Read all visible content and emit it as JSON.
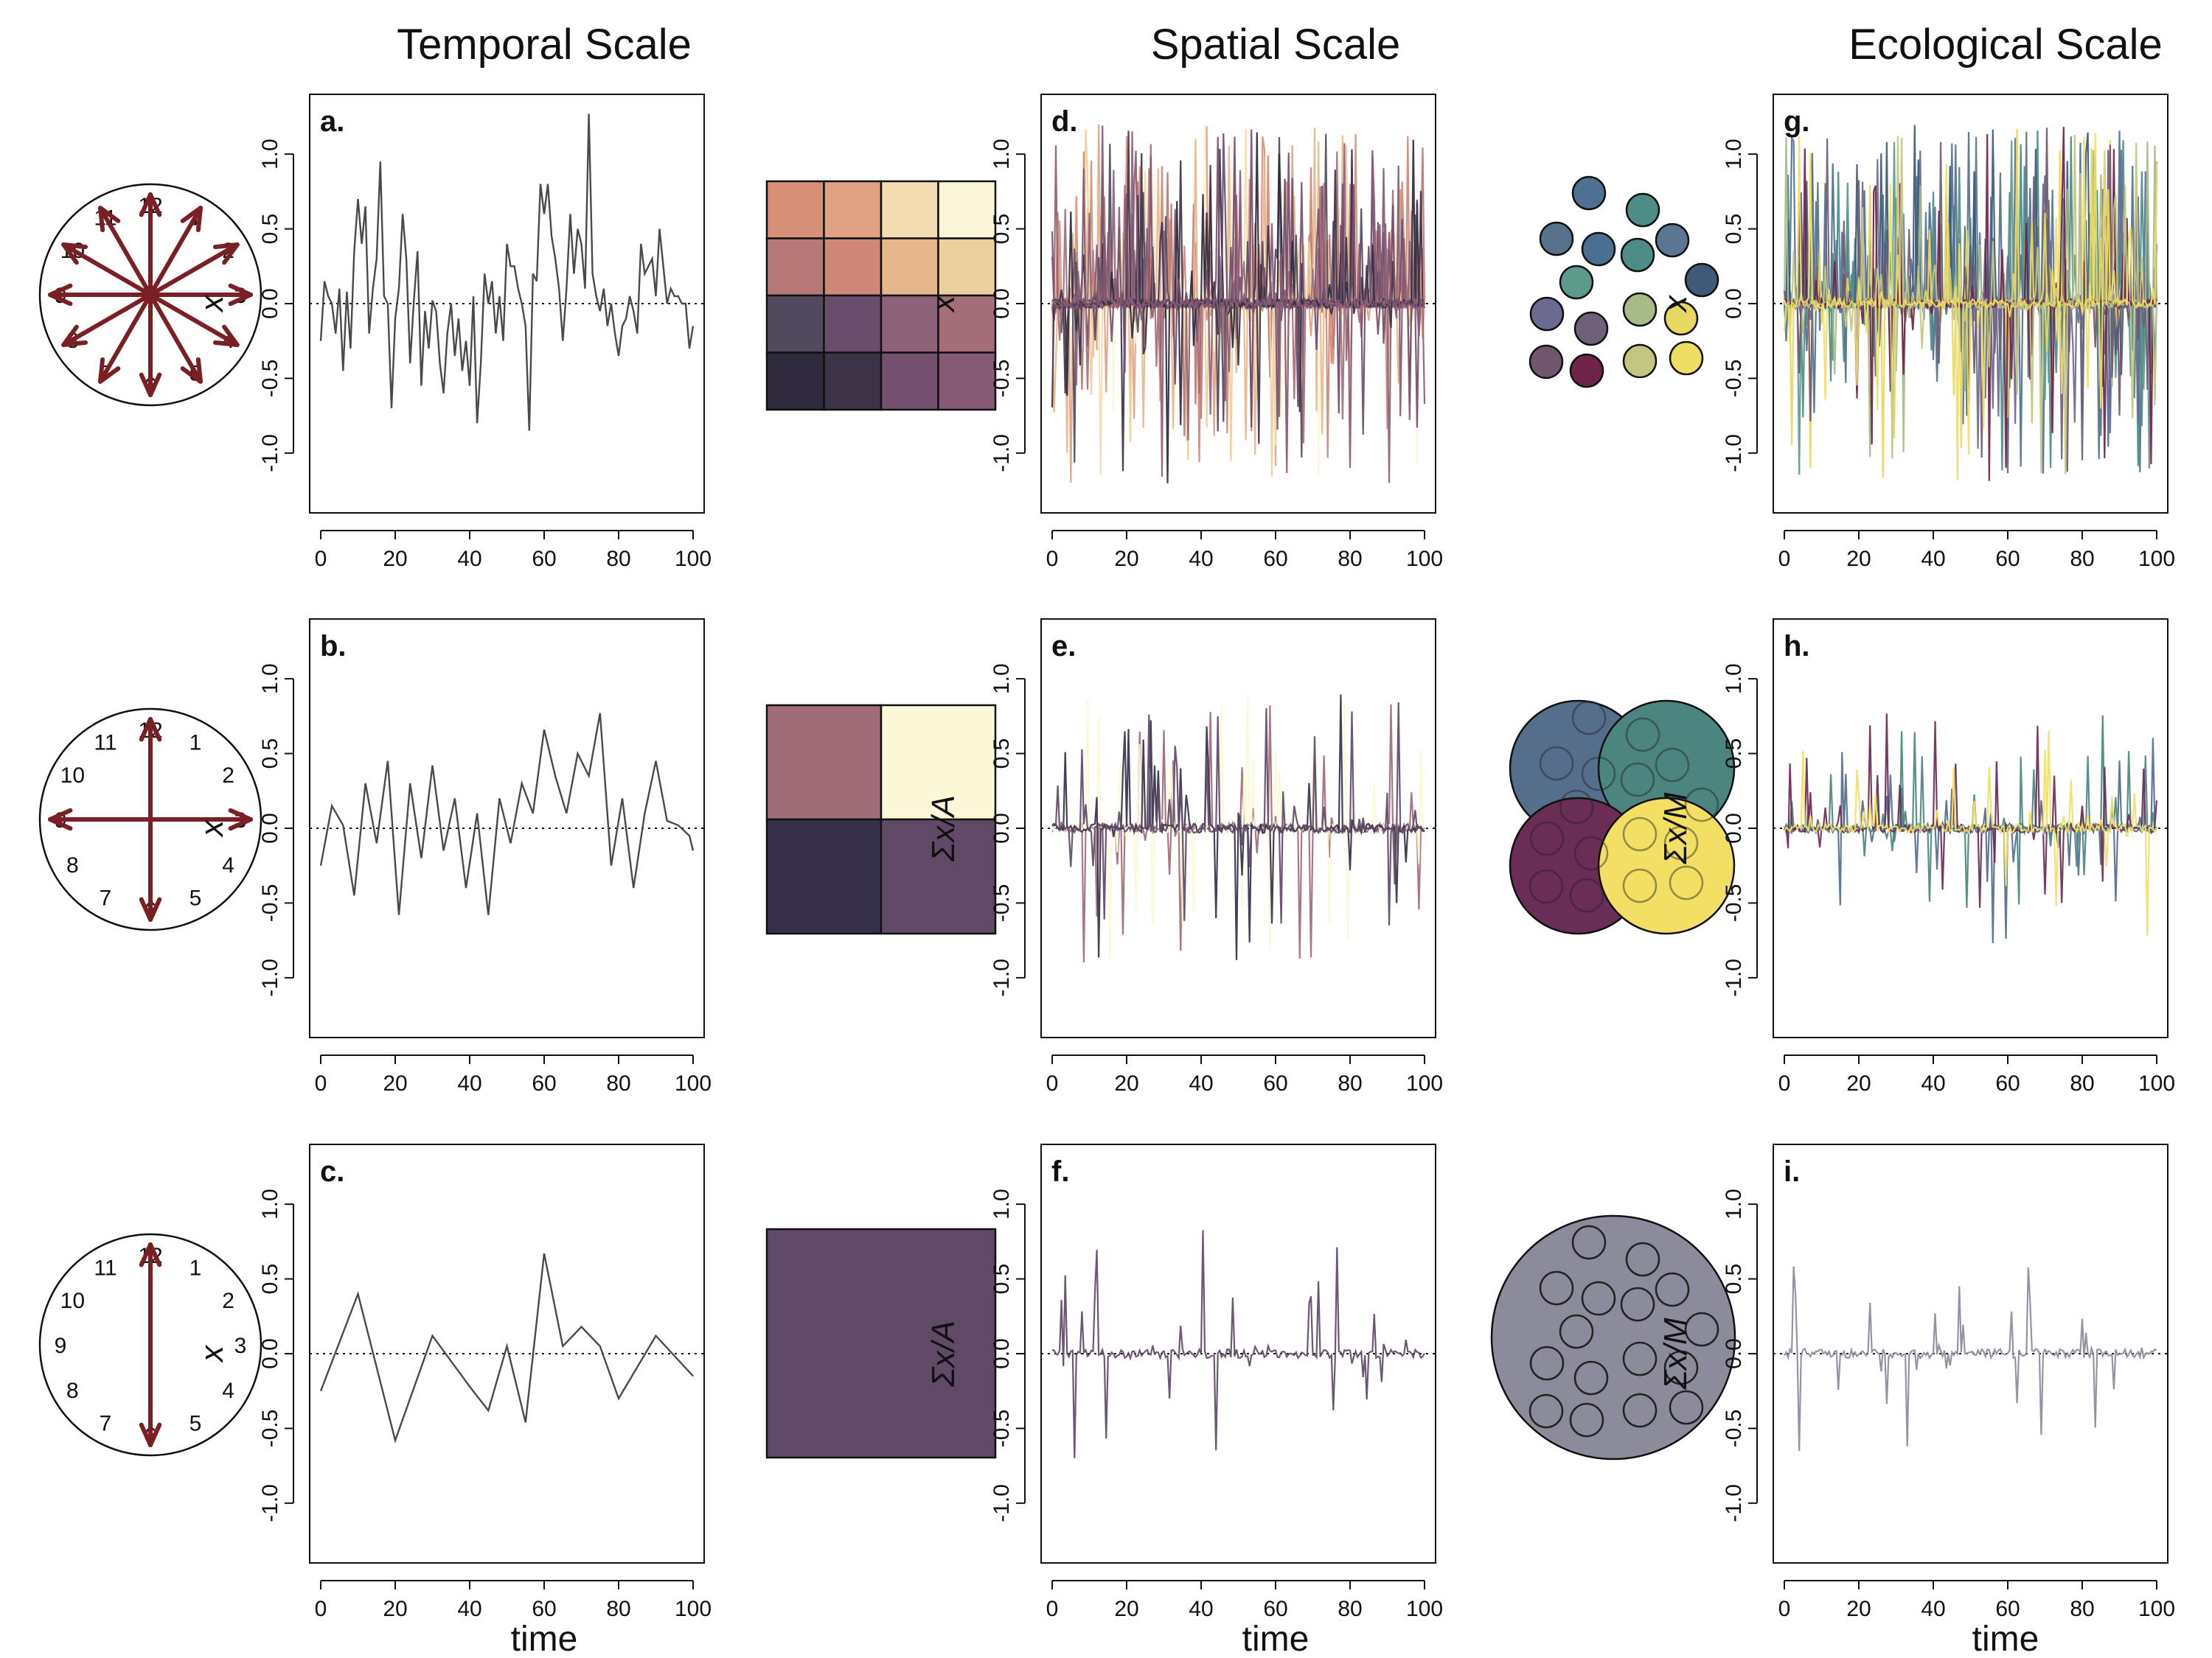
{
  "headers": {
    "temporal": "Temporal Scale",
    "spatial": "Spatial Scale",
    "ecological": "Ecological Scale"
  },
  "xlabel": "time",
  "colors": {
    "arrow": "#7a1f24",
    "line_single": "#4a4a4a",
    "spatial_single": "#5c3f60",
    "eco_single": "#6e6f8e",
    "grid_12": [
      "#d88f78",
      "#e0a282",
      "#f4dcb2",
      "#fcf6d8",
      "#b77878",
      "#cf8878",
      "#e6b68c",
      "#eccf9e",
      "#514a5f",
      "#6a4d6c",
      "#8d6277",
      "#a36e78",
      "#2e293c",
      "#3d3347",
      "#754f6e",
      "#865a74"
    ],
    "grid_4": [
      "#a06c78",
      "#fcf7d7",
      "#36304a",
      "#614a68"
    ],
    "grid_1": [
      "#614a68"
    ],
    "eco_species": [
      "#4f7191",
      "#4d8c87",
      "#57728a",
      "#4b6f8f",
      "#4d8b86",
      "#5a7692",
      "#5e9a8c",
      "#3e5a78",
      "#6b6a90",
      "#6e6079",
      "#a6bb85",
      "#e6d861",
      "#70566d",
      "#6e2349",
      "#c3c681",
      "#efde64"
    ],
    "eco_groups": [
      "#556e8c",
      "#4c8580",
      "#6a2d55",
      "#f2df63"
    ],
    "eco_all": "#8b8b9c"
  },
  "clocks": [
    {
      "numbers": [
        "12",
        "1",
        "2",
        "3",
        "4",
        "5",
        "6",
        "7",
        "8",
        "9",
        "10",
        "11"
      ],
      "arrow_hours": [
        1,
        2,
        3,
        4,
        5,
        6,
        7,
        8,
        9,
        10,
        11,
        12
      ]
    },
    {
      "numbers": [
        "12",
        "1",
        "2",
        "3",
        "4",
        "5",
        "6",
        "7",
        "8",
        "9",
        "10",
        "11"
      ],
      "arrow_hours": [
        3,
        6,
        9,
        12
      ]
    },
    {
      "numbers": [
        "12",
        "1",
        "2",
        "3",
        "4",
        "5",
        "6",
        "7",
        "8",
        "9",
        "10",
        "11"
      ],
      "arrow_hours": [
        6,
        12
      ]
    }
  ],
  "chart_data": [
    {
      "panel": "a.",
      "type": "line",
      "ylabel": "x",
      "ylabel_style": "italic",
      "xlim": [
        0,
        100
      ],
      "ylim": [
        -1.4,
        1.4
      ],
      "xticks": [
        "0",
        "20",
        "40",
        "60",
        "80",
        "100"
      ],
      "yticks": [
        "-1.0",
        "-0.5",
        "0.0",
        "0.5",
        "1.0"
      ],
      "zero_line": "dotted",
      "mode": "single",
      "color_key": "line_single",
      "x": [
        0,
        1,
        2,
        3,
        4,
        5,
        6,
        7,
        8,
        9,
        10,
        11,
        12,
        13,
        14,
        15,
        16,
        17,
        18,
        19,
        20,
        21,
        22,
        23,
        24,
        25,
        26,
        27,
        28,
        29,
        30,
        31,
        32,
        33,
        34,
        35,
        36,
        37,
        38,
        39,
        40,
        41,
        42,
        43,
        44,
        45,
        46,
        47,
        48,
        49,
        50,
        51,
        52,
        53,
        54,
        55,
        56,
        57,
        58,
        59,
        60,
        61,
        62,
        63,
        64,
        65,
        66,
        67,
        68,
        69,
        70,
        71,
        72,
        73,
        74,
        75,
        76,
        77,
        78,
        79,
        80,
        81,
        82,
        83,
        84,
        85,
        86,
        87,
        88,
        89,
        90,
        91,
        92,
        93,
        94,
        95,
        96,
        97,
        98,
        99,
        100
      ],
      "y": [
        -0.25,
        0.15,
        0.05,
        0,
        -0.2,
        0.1,
        -0.45,
        0.08,
        -0.3,
        0.35,
        0.7,
        0.4,
        0.65,
        -0.2,
        0.1,
        0.3,
        0.95,
        0.05,
        0,
        -0.7,
        -0.1,
        0.1,
        0.6,
        0.3,
        -0.4,
        0.02,
        0.35,
        -0.55,
        -0.05,
        -0.3,
        0.02,
        -0.05,
        -0.4,
        -0.6,
        -0.2,
        0.0,
        -0.35,
        -0.1,
        -0.45,
        -0.25,
        -0.55,
        0.05,
        -0.8,
        -0.4,
        0.2,
        0,
        0.15,
        -0.2,
        0.05,
        -0.25,
        0.4,
        0.25,
        0.25,
        0.1,
        0.0,
        -0.15,
        -0.85,
        0.2,
        0.15,
        0.8,
        0.6,
        0.8,
        0.45,
        0.3,
        0.1,
        -0.25,
        0.1,
        0.6,
        0.2,
        0.5,
        0.4,
        0.1,
        1.27,
        0.2,
        0.05,
        -0.05,
        0.1,
        -0.15,
        0,
        -0.2,
        -0.35,
        -0.15,
        -0.1,
        0.05,
        -0.05,
        -0.2,
        0.4,
        0.2,
        0.25,
        0.3,
        0.05,
        0.5,
        0.25,
        0,
        0.1,
        0.05,
        0.05,
        0,
        0,
        -0.3,
        -0.15
      ]
    },
    {
      "panel": "b.",
      "type": "line",
      "ylabel": "x",
      "ylabel_style": "italic",
      "xlim": [
        0,
        100
      ],
      "ylim": [
        -1.4,
        1.4
      ],
      "xticks": [
        "0",
        "20",
        "40",
        "60",
        "80",
        "100"
      ],
      "yticks": [
        "-1.0",
        "-0.5",
        "0.0",
        "0.5",
        "1.0"
      ],
      "zero_line": "dotted",
      "mode": "single",
      "color_key": "line_single",
      "x": [
        0,
        3,
        6,
        9,
        12,
        15,
        18,
        21,
        24,
        27,
        30,
        33,
        36,
        39,
        42,
        45,
        48,
        51,
        54,
        57,
        60,
        63,
        66,
        69,
        72,
        75,
        78,
        81,
        84,
        87,
        90,
        93,
        96,
        99,
        100
      ],
      "y": [
        -0.25,
        0.15,
        0.02,
        -0.45,
        0.3,
        -0.1,
        0.45,
        -0.58,
        0.3,
        -0.2,
        0.42,
        -0.15,
        0.2,
        -0.4,
        0.1,
        -0.58,
        0.2,
        -0.1,
        0.3,
        0.1,
        0.66,
        0.35,
        0.1,
        0.5,
        0.35,
        0.77,
        -0.25,
        0.2,
        -0.4,
        0.1,
        0.45,
        0.05,
        0.02,
        -0.05,
        -0.15
      ]
    },
    {
      "panel": "c.",
      "type": "line",
      "ylabel": "x",
      "ylabel_style": "italic",
      "xlim": [
        0,
        100
      ],
      "ylim": [
        -1.4,
        1.4
      ],
      "xticks": [
        "0",
        "20",
        "40",
        "60",
        "80",
        "100"
      ],
      "yticks": [
        "-1.0",
        "-0.5",
        "0.0",
        "0.5",
        "1.0"
      ],
      "zero_line": "dotted",
      "mode": "single",
      "color_key": "line_single",
      "x": [
        0,
        10,
        20,
        30,
        40,
        45,
        50,
        55,
        60,
        65,
        70,
        75,
        80,
        90,
        100
      ],
      "y": [
        -0.25,
        0.4,
        -0.58,
        0.12,
        -0.22,
        -0.38,
        0.05,
        -0.46,
        0.67,
        0.05,
        0.18,
        0.05,
        -0.3,
        0.12,
        -0.15
      ]
    },
    {
      "panel": "d.",
      "type": "line",
      "ylabel": "x",
      "ylabel_style": "italic",
      "xlim": [
        0,
        100
      ],
      "ylim": [
        -1.4,
        1.4
      ],
      "xticks": [
        "0",
        "20",
        "40",
        "60",
        "80",
        "100"
      ],
      "yticks": [
        "-1.0",
        "-0.5",
        "0.0",
        "0.5",
        "1.0"
      ],
      "zero_line": "dotted",
      "mode": "multi",
      "n_series": 16,
      "color_key": "grid_12",
      "amp": 0.55,
      "pos_bias": 0.3,
      "max_peak": 1.27
    },
    {
      "panel": "e.",
      "type": "line",
      "ylabel": "Σx/A",
      "ylabel_style": "math",
      "xlim": [
        0,
        100
      ],
      "ylim": [
        -1.4,
        1.4
      ],
      "xticks": [
        "0",
        "20",
        "40",
        "60",
        "80",
        "100"
      ],
      "yticks": [
        "-1.0",
        "-0.5",
        "0.0",
        "0.5",
        "1.0"
      ],
      "zero_line": "dotted",
      "mode": "multi",
      "n_series": 4,
      "color_key": "grid_4",
      "amp": 0.45,
      "pos_bias": 0.25,
      "max_peak": 0.9
    },
    {
      "panel": "f.",
      "type": "line",
      "ylabel": "Σx/A",
      "ylabel_style": "math",
      "xlim": [
        0,
        100
      ],
      "ylim": [
        -1.4,
        1.4
      ],
      "xticks": [
        "0",
        "20",
        "40",
        "60",
        "80",
        "100"
      ],
      "yticks": [
        "-1.0",
        "-0.5",
        "0.0",
        "0.5",
        "1.0"
      ],
      "zero_line": "dotted",
      "mode": "multi",
      "n_series": 1,
      "color_key": "grid_1",
      "amp": 0.4,
      "pos_bias": 0.2,
      "max_peak": 0.85
    },
    {
      "panel": "g.",
      "type": "line",
      "ylabel": "x",
      "ylabel_style": "italic",
      "xlim": [
        0,
        100
      ],
      "ylim": [
        -1.4,
        1.4
      ],
      "xticks": [
        "0",
        "20",
        "40",
        "60",
        "80",
        "100"
      ],
      "yticks": [
        "-1.0",
        "-0.5",
        "0.0",
        "0.5",
        "1.0"
      ],
      "zero_line": "dotted",
      "mode": "multi",
      "n_series": 16,
      "color_key": "eco_species",
      "amp": 0.6,
      "pos_bias": 0.35,
      "max_peak": 1.2
    },
    {
      "panel": "h.",
      "type": "line",
      "ylabel": "Σx/M",
      "ylabel_style": "math",
      "xlim": [
        0,
        100
      ],
      "ylim": [
        -1.4,
        1.4
      ],
      "xticks": [
        "0",
        "20",
        "40",
        "60",
        "80",
        "100"
      ],
      "yticks": [
        "-1.0",
        "-0.5",
        "0.0",
        "0.5",
        "1.0"
      ],
      "zero_line": "dotted",
      "mode": "multi",
      "n_series": 4,
      "color_key": "eco_groups",
      "amp": 0.35,
      "pos_bias": 0.2,
      "max_peak": 0.9
    },
    {
      "panel": "i.",
      "type": "line",
      "ylabel": "Σx/M",
      "ylabel_style": "math",
      "xlim": [
        0,
        100
      ],
      "ylim": [
        -1.4,
        1.4
      ],
      "xticks": [
        "0",
        "20",
        "40",
        "60",
        "80",
        "100"
      ],
      "yticks": [
        "-1.0",
        "-0.5",
        "0.0",
        "0.5",
        "1.0"
      ],
      "zero_line": "dotted",
      "mode": "multi",
      "n_series": 1,
      "color_key": "eco_all",
      "amp": 0.3,
      "pos_bias": 0.15,
      "max_peak": 0.8
    }
  ]
}
